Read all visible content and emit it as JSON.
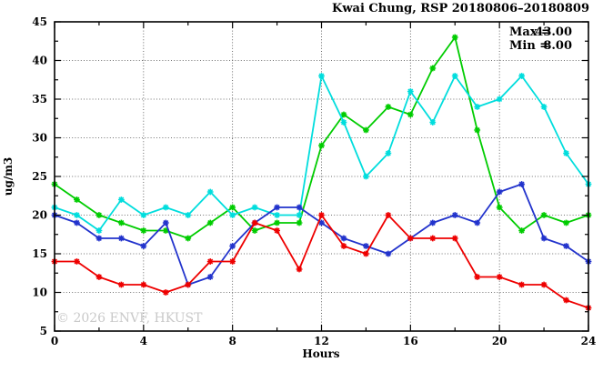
{
  "header": {
    "title": "Kwai Chung, RSP 20180806–20180809"
  },
  "legend": {
    "max_label": "Max =",
    "max_value": "43.00",
    "min_label": "Min =",
    "min_value": "8.00"
  },
  "axes": {
    "y_label": "ug/m3",
    "x_label": "Hours"
  },
  "watermark": "© 2026 ENVF, HKUST",
  "chart_data": {
    "type": "line",
    "title": "Kwai Chung, RSP 20180806–20180809",
    "xlabel": "Hours",
    "ylabel": "ug/m3",
    "xlim": [
      0,
      24
    ],
    "ylim": [
      5,
      45
    ],
    "x_major_ticks": [
      0,
      4,
      8,
      12,
      16,
      20,
      24
    ],
    "x_minor_ticks": [
      2,
      6,
      10,
      14,
      18,
      22
    ],
    "y_major_ticks": [
      5,
      10,
      15,
      20,
      25,
      30,
      35,
      40,
      45
    ],
    "y_minor_ticks": [
      7.5,
      12.5,
      17.5,
      22.5,
      27.5,
      32.5,
      37.5,
      42.5
    ],
    "grid": "dotted lines at major ticks",
    "legend_position": "top-right inside plot",
    "marker": "asterisk",
    "x": [
      0,
      1,
      2,
      3,
      4,
      5,
      6,
      7,
      8,
      9,
      10,
      11,
      12,
      13,
      14,
      15,
      16,
      17,
      18,
      19,
      20,
      21,
      22,
      23,
      24
    ],
    "series": [
      {
        "name": "series-green",
        "color": "#00cc00",
        "values": [
          24,
          22,
          20,
          19,
          18,
          18,
          17,
          19,
          21,
          18,
          19,
          19,
          29,
          33,
          31,
          34,
          33,
          39,
          43,
          31,
          21,
          18,
          20,
          19,
          20
        ]
      },
      {
        "name": "series-cyan",
        "color": "#00dddd",
        "values": [
          21,
          20,
          18,
          22,
          20,
          21,
          20,
          23,
          20,
          21,
          20,
          20,
          38,
          32,
          25,
          28,
          36,
          32,
          38,
          34,
          35,
          38,
          34,
          28,
          24
        ]
      },
      {
        "name": "series-blue",
        "color": "#2233cc",
        "values": [
          20,
          19,
          17,
          17,
          16,
          19,
          11,
          12,
          16,
          19,
          21,
          21,
          19,
          17,
          16,
          15,
          17,
          19,
          20,
          19,
          23,
          24,
          17,
          16,
          14
        ]
      },
      {
        "name": "series-red",
        "color": "#ee0000",
        "values": [
          14,
          14,
          12,
          11,
          11,
          10,
          11,
          14,
          14,
          19,
          18,
          13,
          20,
          16,
          15,
          20,
          17,
          17,
          17,
          12,
          12,
          11,
          11,
          9,
          8
        ]
      }
    ],
    "annotations": {
      "max": 43.0,
      "min": 8.0
    }
  }
}
